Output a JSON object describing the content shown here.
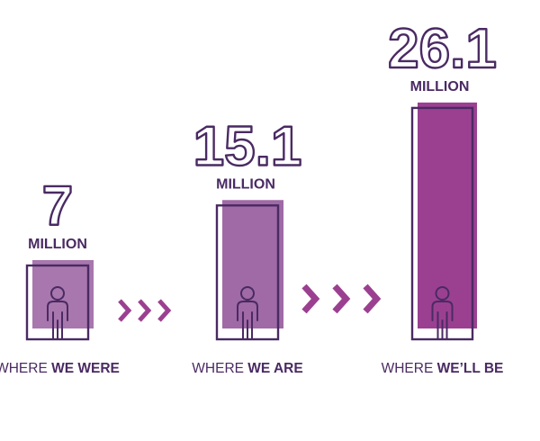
{
  "chart_data": {
    "type": "bar",
    "categories": [
      "WHERE WE WERE",
      "WHERE WE ARE",
      "WHERE WE’LL BE"
    ],
    "labels": [
      {
        "light": "WHERE ",
        "bold": "WE WERE"
      },
      {
        "light": "WHERE ",
        "bold": "WE ARE"
      },
      {
        "light": "WHERE ",
        "bold": "WE’LL BE"
      }
    ],
    "values": [
      7,
      15.1,
      26.1
    ],
    "value_labels": [
      "7",
      "15.1",
      "26.1"
    ],
    "unit": "MILLION",
    "colors": {
      "fills": [
        "#a877ad",
        "#a06aa6",
        "#9b4091"
      ],
      "outline": "#4a2a63",
      "chevron": "#9b4091"
    },
    "icons": [
      "person-icon",
      "chevron-right-icon"
    ]
  }
}
